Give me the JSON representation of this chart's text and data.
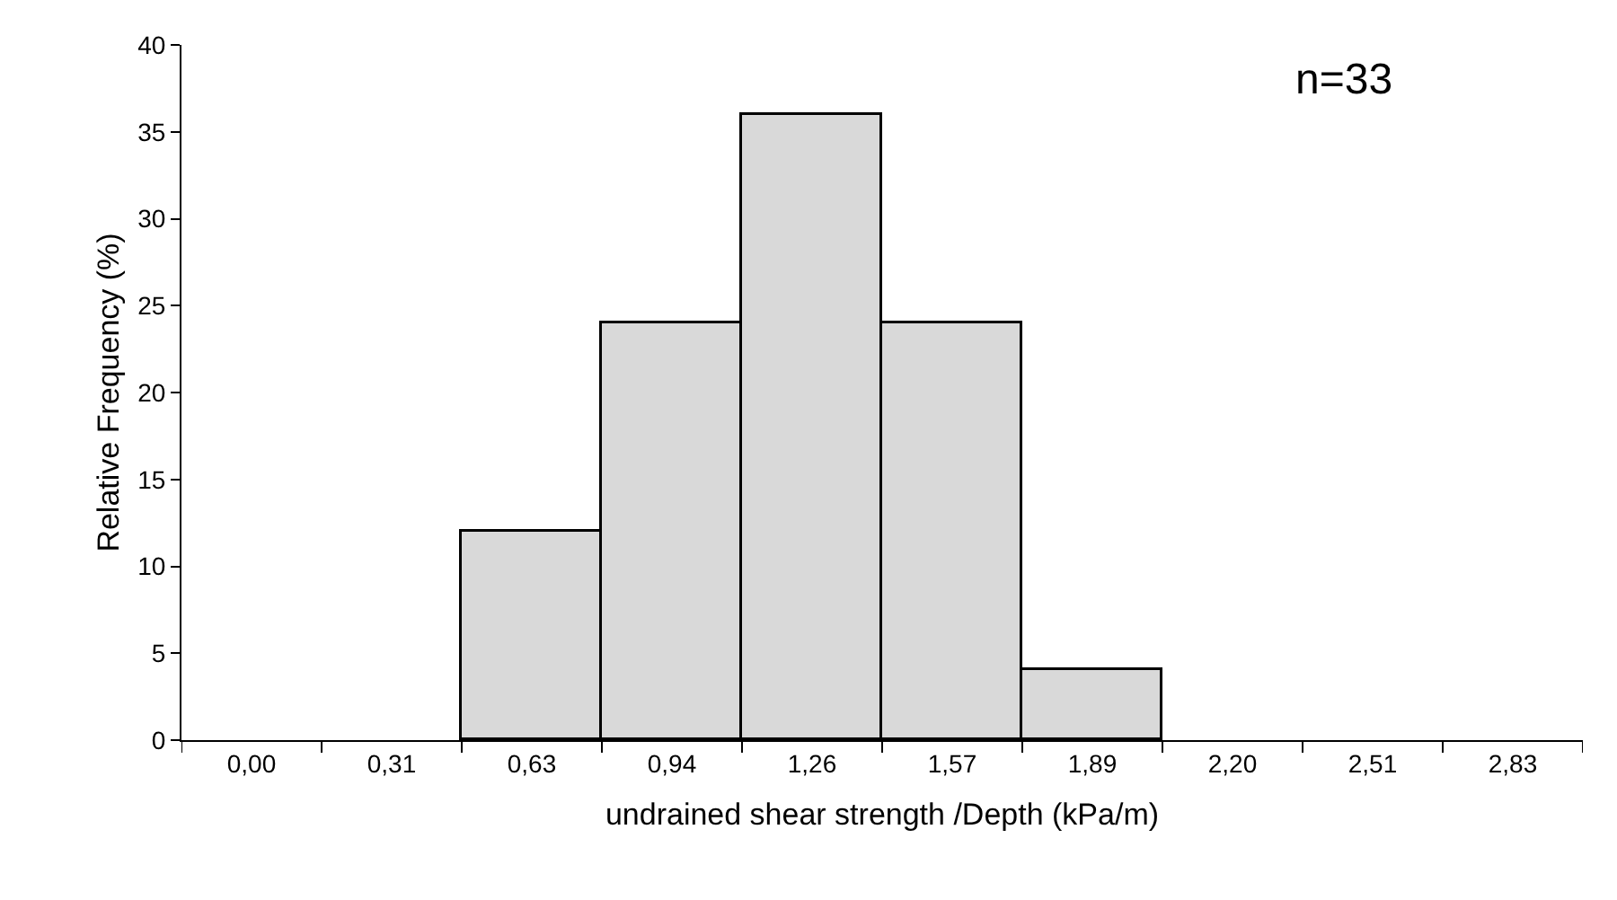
{
  "chart_data": {
    "type": "bar",
    "xlabel": "undrained shear strength /Depth (kPa/m)",
    "ylabel": "Relative Frequency (%)",
    "categories": [
      "0,00",
      "0,31",
      "0,63",
      "0,94",
      "1,26",
      "1,57",
      "1,89",
      "2,20",
      "2,51",
      "2,83"
    ],
    "values": [
      0,
      0,
      12,
      24,
      36,
      24,
      4,
      0,
      0,
      0
    ],
    "color": "#d9d9d9",
    "ylim": [
      0,
      40
    ],
    "yticks": [
      0,
      5,
      10,
      15,
      20,
      25,
      30,
      35,
      40
    ],
    "annotations": [
      "n=33"
    ]
  }
}
